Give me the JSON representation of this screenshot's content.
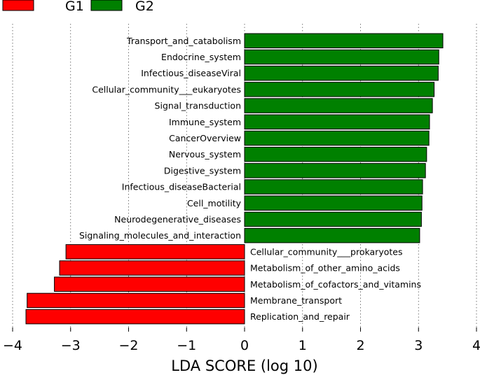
{
  "chart_data": {
    "type": "bar",
    "orientation": "horizontal",
    "title": "",
    "xlabel": "LDA SCORE (log 10)",
    "ylabel": "",
    "xlim": [
      -4,
      4
    ],
    "xticks": [
      "−4",
      "−3",
      "−2",
      "−1",
      "0",
      "1",
      "2",
      "3",
      "4"
    ],
    "xtick_values": [
      -4,
      -3,
      -2,
      -1,
      0,
      1,
      2,
      3,
      4
    ],
    "grid": "vertical dotted",
    "legend": {
      "placement": "top-left",
      "entries": [
        {
          "name": "G1",
          "color": "#ff0000"
        },
        {
          "name": "G2",
          "color": "#008000"
        }
      ]
    },
    "bars": [
      {
        "label": "Transport_and_catabolism",
        "value": 3.42,
        "group": "G2"
      },
      {
        "label": "Endocrine_system",
        "value": 3.35,
        "group": "G2"
      },
      {
        "label": "Infectious_diseaseViral",
        "value": 3.34,
        "group": "G2"
      },
      {
        "label": "Cellular_community___eukaryotes",
        "value": 3.27,
        "group": "G2"
      },
      {
        "label": "Signal_transduction",
        "value": 3.24,
        "group": "G2"
      },
      {
        "label": "Immune_system",
        "value": 3.19,
        "group": "G2"
      },
      {
        "label": "CancerOverview",
        "value": 3.18,
        "group": "G2"
      },
      {
        "label": "Nervous_system",
        "value": 3.14,
        "group": "G2"
      },
      {
        "label": "Digestive_system",
        "value": 3.12,
        "group": "G2"
      },
      {
        "label": "Infectious_diseaseBacterial",
        "value": 3.07,
        "group": "G2"
      },
      {
        "label": "Cell_motility",
        "value": 3.06,
        "group": "G2"
      },
      {
        "label": "Neurodegenerative_diseases",
        "value": 3.05,
        "group": "G2"
      },
      {
        "label": "Signaling_molecules_and_interaction",
        "value": 3.02,
        "group": "G2"
      },
      {
        "label": "Cellular_community___prokaryotes",
        "value": -3.08,
        "group": "G1"
      },
      {
        "label": "Metabolism_of_other_amino_acids",
        "value": -3.19,
        "group": "G1"
      },
      {
        "label": "Metabolism_of_cofactors_and_vitamins",
        "value": -3.28,
        "group": "G1"
      },
      {
        "label": "Membrane_transport",
        "value": -3.75,
        "group": "G1"
      },
      {
        "label": "Replication_and_repair",
        "value": -3.77,
        "group": "G1"
      }
    ]
  }
}
